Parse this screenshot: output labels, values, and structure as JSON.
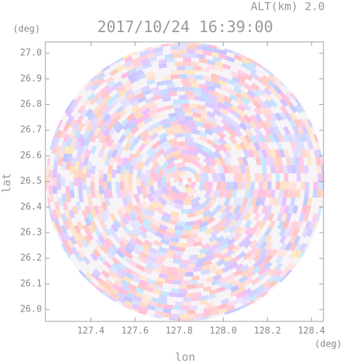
{
  "chart_data": {
    "type": "radar_cappi",
    "altitude_label": "ALT(km) 2.0",
    "title": "2017/10/24 16:39:00",
    "y_unit": "(deg)",
    "x_unit": "(deg)",
    "xlabel": "lon",
    "ylabel": "lat",
    "xlim": [
      127.194,
      128.454
    ],
    "ylim": [
      25.954,
      27.044
    ],
    "xticks": [
      127.4,
      127.6,
      127.8,
      {
        "value": 128,
        "label": "128.0"
      },
      128.2,
      128.4
    ],
    "yticks": [
      {
        "value": 26,
        "label": "26.0"
      },
      26.1,
      26.2,
      26.3,
      26.4,
      26.5,
      26.6,
      26.7,
      26.8,
      26.9,
      {
        "value": 27,
        "label": "27.0"
      }
    ]
  }
}
